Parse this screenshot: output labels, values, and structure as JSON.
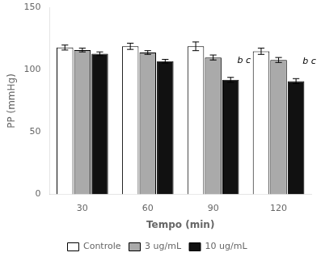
{
  "chart_data": {
    "type": "bar",
    "xlabel": "Tempo (min)",
    "ylabel": "PP (mmHg)",
    "categories": [
      "30",
      "60",
      "90",
      "120"
    ],
    "series": [
      {
        "name": "Controle",
        "color": "#ffffff",
        "values": [
          118,
          119,
          119,
          115
        ],
        "errors": [
          2.0,
          2.5,
          3.5,
          2.5
        ]
      },
      {
        "name": "3 ug/mL",
        "color": "#aaaaaa",
        "values": [
          116,
          114,
          110,
          108
        ],
        "errors": [
          1.5,
          1.5,
          2.0,
          2.0
        ]
      },
      {
        "name": "10 ug/mL",
        "color": "#111111",
        "values": [
          113,
          107,
          92,
          91
        ],
        "errors": [
          1.5,
          1.5,
          2.0,
          2.0
        ]
      }
    ],
    "ylim": [
      0,
      150
    ],
    "yticks": [
      0,
      50,
      100,
      150
    ],
    "annotations": [
      {
        "text": "b c",
        "x": "90",
        "y": 104
      },
      {
        "text": "b c",
        "x": "120",
        "y": 103
      }
    ],
    "legend": "bottom",
    "grid": false
  }
}
